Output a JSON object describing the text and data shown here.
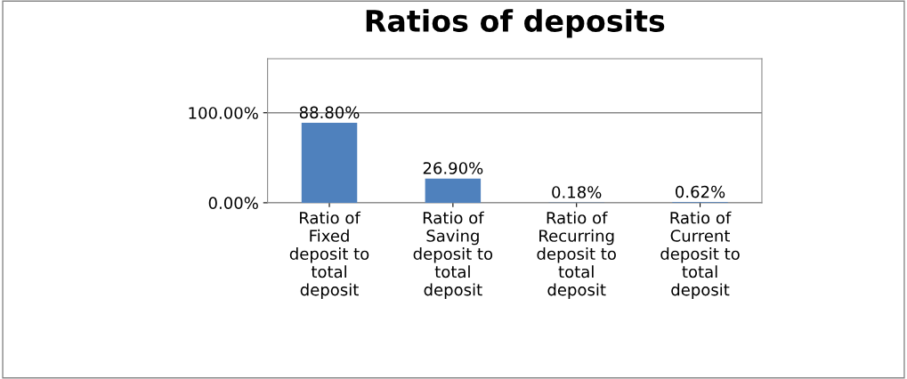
{
  "chart_data": {
    "type": "bar",
    "title": "Ratios of deposits",
    "categories": [
      "Ratio of\nFixed\ndeposit to\ntotal\ndeposit",
      "Ratio of\nSaving\ndeposit to\ntotal\ndeposit",
      "Ratio of\nRecurring\ndeposit to\ntotal\ndeposit",
      "Ratio of\nCurrent\ndeposit to\ntotal\ndeposit"
    ],
    "values": [
      88.8,
      26.9,
      0.18,
      0.62
    ],
    "value_labels": [
      "88.80%",
      "26.90%",
      "0.18%",
      "0.62%"
    ],
    "color": "#4f81bd",
    "ylim": [
      0,
      160
    ],
    "yticks": [
      {
        "value": 0,
        "label": "0.00%"
      },
      {
        "value": 100,
        "label": "100.00%"
      }
    ],
    "grid": "y"
  }
}
